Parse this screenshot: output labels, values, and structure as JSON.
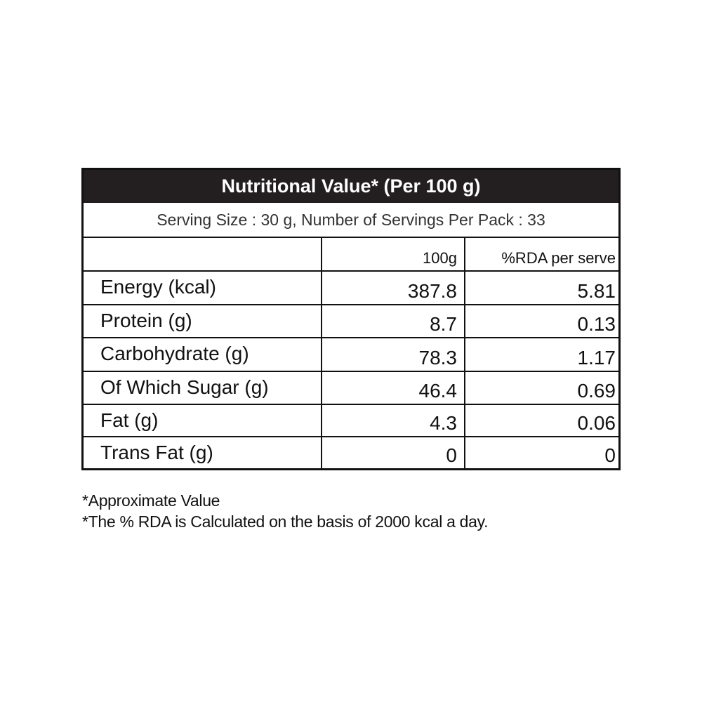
{
  "table": {
    "title": "Nutritional Value* (Per 100 g)",
    "serving_info": "Serving Size :  30 g, Number of Servings Per Pack : 33",
    "columns": {
      "nutrient": "",
      "per_100g": "100g",
      "rda": "%RDA per serve"
    },
    "rows": [
      {
        "name": "Energy (kcal)",
        "per_100g": "387.8",
        "rda": "5.81"
      },
      {
        "name": "Protein (g)",
        "per_100g": "8.7",
        "rda": "0.13"
      },
      {
        "name": "Carbohydrate (g)",
        "per_100g": "78.3",
        "rda": "1.17"
      },
      {
        "name": "Of Which Sugar (g)",
        "per_100g": "46.4",
        "rda": "0.69"
      },
      {
        "name": "Fat (g)",
        "per_100g": "4.3",
        "rda": "0.06"
      },
      {
        "name": "Trans Fat (g)",
        "per_100g": "0",
        "rda": "0"
      }
    ]
  },
  "footnotes": [
    "*Approximate Value",
    "*The % RDA is Calculated on the basis of 2000 kcal a day."
  ],
  "colors": {
    "title_background": "#231f20",
    "title_text": "#ffffff",
    "border": "#111111"
  }
}
